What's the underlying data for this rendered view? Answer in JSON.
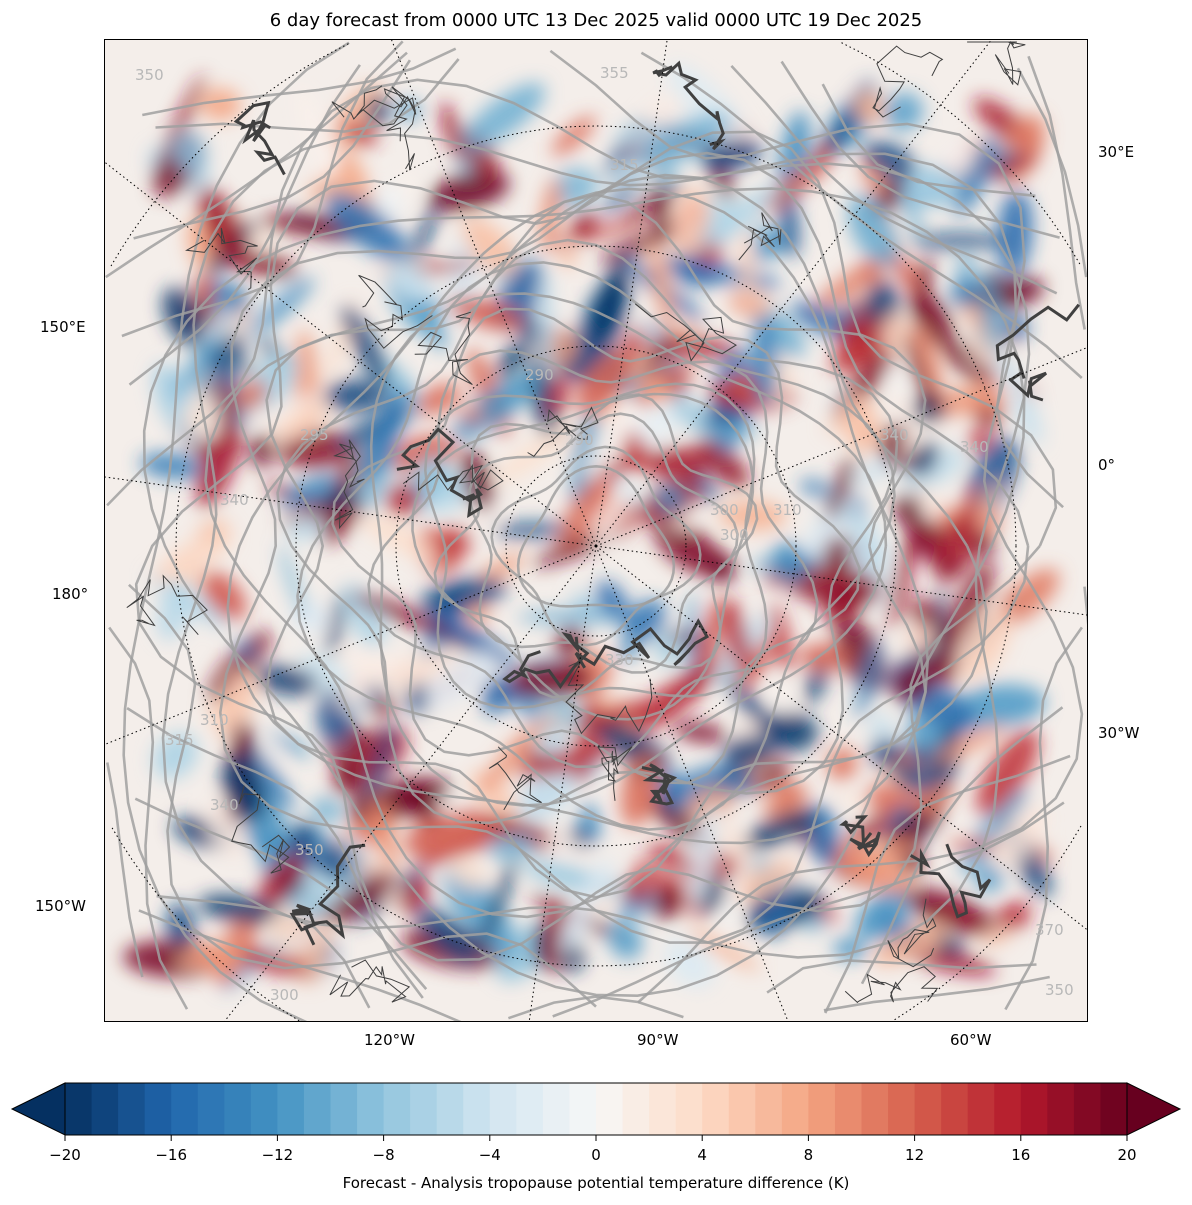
{
  "title": "6 day forecast from 0000 UTC 13 Dec 2025 valid 0000 UTC 19 Dec 2025",
  "map": {
    "projection": "north polar stereographic",
    "longitude_labels": {
      "right": [
        "30°E",
        "0°",
        "30°W"
      ],
      "left": [
        "150°E",
        "180°",
        "150°W"
      ],
      "bottom": [
        "120°W",
        "90°W",
        "60°W"
      ]
    },
    "contour_labels": [
      "350",
      "355",
      "315",
      "340",
      "340",
      "300",
      "310",
      "300",
      "290",
      "295",
      "290",
      "340",
      "310",
      "315",
      "340",
      "350",
      "300",
      "330",
      "370",
      "350"
    ],
    "contour_color": "#a0a0a0",
    "coastline_color": "#404040"
  },
  "colorbar": {
    "ticks": [
      "−20",
      "−16",
      "−12",
      "−8",
      "−4",
      "0",
      "4",
      "8",
      "12",
      "16",
      "20"
    ],
    "min": -20,
    "max": 20,
    "step": 1,
    "extend": "both",
    "colormap": "RdBu_r",
    "label": "Forecast - Analysis tropopause potential temperature difference (K)"
  }
}
